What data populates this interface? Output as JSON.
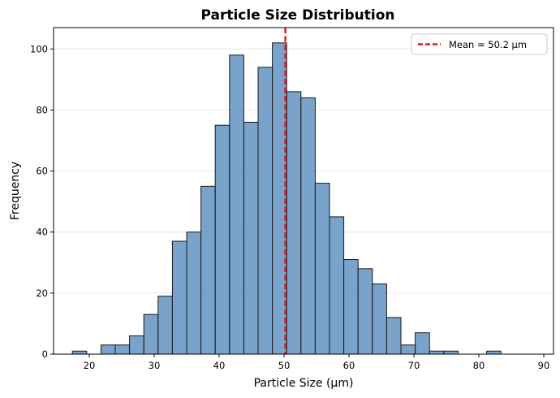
{
  "chart_data": {
    "type": "bar",
    "title": "Particle Size Distribution",
    "xlabel": "Particle Size (µm)",
    "ylabel": "Frequency",
    "xlim": [
      14.5,
      91.5
    ],
    "ylim": [
      0,
      107
    ],
    "xticks": [
      20,
      30,
      40,
      50,
      60,
      70,
      80,
      90
    ],
    "yticks": [
      0,
      20,
      40,
      60,
      80,
      100
    ],
    "bins": [
      {
        "x0": 17.4,
        "x1": 19.6,
        "count": 1
      },
      {
        "x0": 19.6,
        "x1": 21.8,
        "count": 0
      },
      {
        "x0": 21.8,
        "x1": 24.0,
        "count": 3
      },
      {
        "x0": 24.0,
        "x1": 26.2,
        "count": 3
      },
      {
        "x0": 26.2,
        "x1": 28.4,
        "count": 6
      },
      {
        "x0": 28.4,
        "x1": 30.6,
        "count": 13
      },
      {
        "x0": 30.6,
        "x1": 32.8,
        "count": 19
      },
      {
        "x0": 32.8,
        "x1": 35.0,
        "count": 37
      },
      {
        "x0": 35.0,
        "x1": 37.2,
        "count": 40
      },
      {
        "x0": 37.2,
        "x1": 39.4,
        "count": 55
      },
      {
        "x0": 39.4,
        "x1": 41.6,
        "count": 75
      },
      {
        "x0": 41.6,
        "x1": 43.8,
        "count": 98
      },
      {
        "x0": 43.8,
        "x1": 46.0,
        "count": 76
      },
      {
        "x0": 46.0,
        "x1": 48.2,
        "count": 94
      },
      {
        "x0": 48.2,
        "x1": 50.4,
        "count": 102
      },
      {
        "x0": 50.4,
        "x1": 52.6,
        "count": 86
      },
      {
        "x0": 52.6,
        "x1": 54.8,
        "count": 84
      },
      {
        "x0": 54.8,
        "x1": 57.0,
        "count": 56
      },
      {
        "x0": 57.0,
        "x1": 59.2,
        "count": 45
      },
      {
        "x0": 59.2,
        "x1": 61.4,
        "count": 31
      },
      {
        "x0": 61.4,
        "x1": 63.6,
        "count": 28
      },
      {
        "x0": 63.6,
        "x1": 65.8,
        "count": 23
      },
      {
        "x0": 65.8,
        "x1": 68.0,
        "count": 12
      },
      {
        "x0": 68.0,
        "x1": 70.2,
        "count": 3
      },
      {
        "x0": 70.2,
        "x1": 72.4,
        "count": 7
      },
      {
        "x0": 72.4,
        "x1": 74.6,
        "count": 1
      },
      {
        "x0": 74.6,
        "x1": 76.8,
        "count": 1
      },
      {
        "x0": 76.8,
        "x1": 79.0,
        "count": 0
      },
      {
        "x0": 79.0,
        "x1": 81.2,
        "count": 0
      },
      {
        "x0": 81.2,
        "x1": 83.4,
        "count": 1
      }
    ],
    "mean": 50.2,
    "legend": {
      "label": "Mean = 50.2 µm",
      "placement": "top-right"
    },
    "grid": {
      "y": true,
      "x": false
    },
    "colors": {
      "bar_fill": "#5b8fbe",
      "bar_edge": "#1a1a1a",
      "mean_line": "#e41a1c",
      "grid": "#e6e6e6"
    }
  }
}
